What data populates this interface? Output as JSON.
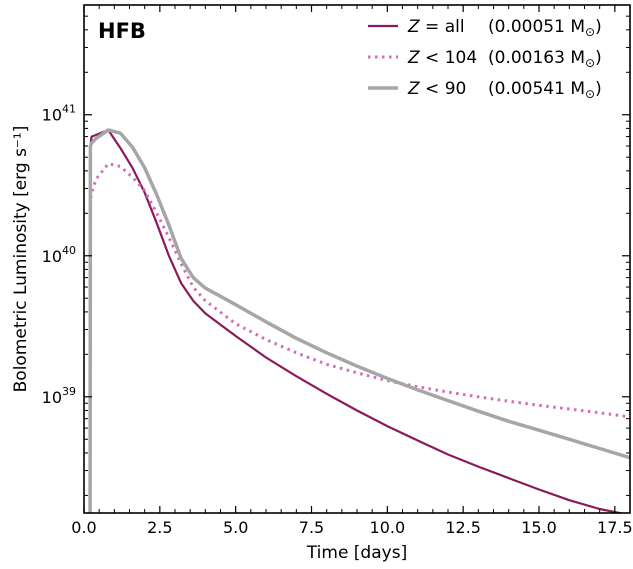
{
  "chart_data": {
    "type": "line",
    "title": "HFB",
    "xlabel": "Time [days]",
    "ylabel": "Bolometric Luminosity [erg s⁻¹]",
    "xlim": [
      0,
      18
    ],
    "ylim": [
      1.5e+38,
      6e+41
    ],
    "yscale": "log",
    "grid": false,
    "legend_position": "top-right",
    "xticks": [
      0.0,
      2.5,
      5.0,
      7.5,
      10.0,
      12.5,
      15.0,
      17.5
    ],
    "xtick_labels": [
      "0.0",
      "2.5",
      "5.0",
      "7.5",
      "10.0",
      "12.5",
      "15.0",
      "17.5"
    ],
    "yticks": [
      {
        "value": 1e+39,
        "base": "10",
        "exp": "39"
      },
      {
        "value": 1e+40,
        "base": "10",
        "exp": "40"
      },
      {
        "value": 1e+41,
        "base": "10",
        "exp": "41"
      }
    ],
    "series": [
      {
        "name": "Z = all",
        "legend_var": "Z",
        "legend_rel": "= all",
        "mass_value": "(0.00051 M",
        "mass_close": ")",
        "color": "#8b1a5c",
        "style": "solid",
        "x": [
          0.2,
          0.21,
          0.25,
          0.4,
          0.8,
          1.2,
          1.6,
          2.0,
          2.4,
          2.8,
          3.2,
          3.6,
          4.0,
          5.0,
          6.0,
          7.0,
          8.0,
          9.0,
          10.0,
          11.0,
          12.0,
          13.0,
          14.0,
          15.0,
          16.0,
          17.0,
          18.0
        ],
        "y": [
          1.5e+38,
          6e+40,
          7e+40,
          7.2e+40,
          7.8e+40,
          5.8e+40,
          4.2e+40,
          2.8e+40,
          1.7e+40,
          1e+40,
          6.4e+39,
          4.8e+39,
          3.9e+39,
          2.7e+39,
          1.9e+39,
          1.4e+39,
          1.05e+39,
          8e+38,
          6.2e+38,
          4.9e+38,
          3.9e+38,
          3.2e+38,
          2.65e+38,
          2.2e+38,
          1.85e+38,
          1.6e+38,
          1.45e+38
        ]
      },
      {
        "name": "Z < 104",
        "legend_var": "Z",
        "legend_rel": "< 104",
        "mass_value": "(0.00163 M",
        "mass_close": ")",
        "color": "#d36db7",
        "style": "dotted",
        "x": [
          0.2,
          0.21,
          0.25,
          0.4,
          0.8,
          1.2,
          1.6,
          2.0,
          2.4,
          2.8,
          3.2,
          3.6,
          4.0,
          5.0,
          6.0,
          7.0,
          8.0,
          9.0,
          10.0,
          11.0,
          12.0,
          13.0,
          14.0,
          15.0,
          16.0,
          17.0,
          18.0
        ],
        "y": [
          1.5e+38,
          2.5e+40,
          2.8e+40,
          3.5e+40,
          4.5e+40,
          4.3e+40,
          3.6e+40,
          2.9e+40,
          2e+40,
          1.35e+40,
          8.8e+39,
          6e+39,
          4.8e+39,
          3.3e+39,
          2.55e+39,
          2.05e+39,
          1.7e+39,
          1.48e+39,
          1.3e+39,
          1.18e+39,
          1.08e+39,
          1e+39,
          9.3e+38,
          8.7e+38,
          8.2e+38,
          7.7e+38,
          7.2e+38
        ]
      },
      {
        "name": "Z < 90",
        "legend_var": "Z",
        "legend_rel": "< 90",
        "mass_value": "(0.00541 M",
        "mass_close": ")",
        "color": "#a6a6a6",
        "style": "solid-thick",
        "x": [
          0.2,
          0.21,
          0.25,
          0.4,
          0.8,
          1.2,
          1.6,
          2.0,
          2.4,
          2.8,
          3.2,
          3.6,
          4.0,
          4.4,
          5.0,
          6.0,
          7.0,
          8.0,
          9.0,
          10.0,
          11.0,
          12.0,
          13.0,
          14.0,
          15.0,
          16.0,
          17.0,
          18.0
        ],
        "y": [
          1.5e+38,
          6e+40,
          6.3e+40,
          6.8e+40,
          7.8e+40,
          7.4e+40,
          5.9e+40,
          4.2e+40,
          2.7e+40,
          1.65e+40,
          9.6e+39,
          7e+39,
          5.9e+39,
          5.3e+39,
          4.5e+39,
          3.4e+39,
          2.6e+39,
          2.05e+39,
          1.65e+39,
          1.35e+39,
          1.12e+39,
          9.4e+38,
          7.9e+38,
          6.7e+38,
          5.8e+38,
          5e+38,
          4.3e+38,
          3.7e+38
        ]
      }
    ]
  }
}
